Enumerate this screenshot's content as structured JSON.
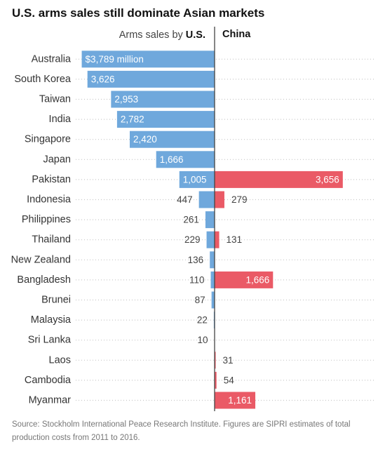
{
  "title": "U.S. arms sales still dominate Asian markets",
  "source": "Source: Stockholm International Peace Research Institute. Figures are SIPRI estimates of total production costs from 2011 to 2016.",
  "colors": {
    "us": "#6fa8dc",
    "china": "#ea5a66",
    "axis": "#444444",
    "dots": "#c8c8c8"
  },
  "chart_data": {
    "type": "bar",
    "orientation": "horizontal-diverging",
    "title": "U.S. arms sales still dominate Asian markets",
    "header_left_prefix": "Arms sales by ",
    "header_left_bold": "U.S.",
    "header_right": "China",
    "first_label_suffix": " million",
    "categories": [
      "Australia",
      "South Korea",
      "Taiwan",
      "India",
      "Singapore",
      "Japan",
      "Pakistan",
      "Indonesia",
      "Philippines",
      "Thailand",
      "New Zealand",
      "Bangladesh",
      "Brunei",
      "Malaysia",
      "Sri Lanka",
      "Laos",
      "Cambodia",
      "Myanmar"
    ],
    "series": [
      {
        "name": "U.S.",
        "values": [
          3789,
          3626,
          2953,
          2782,
          2420,
          1666,
          1005,
          447,
          261,
          229,
          136,
          110,
          87,
          22,
          10,
          null,
          null,
          null
        ],
        "labels": [
          "$3,789 million",
          "3,626",
          "2,953",
          "2,782",
          "2,420",
          "1,666",
          "1,005",
          "447",
          "261",
          "229",
          "136",
          "110",
          "87",
          "22",
          "10",
          "",
          "",
          ""
        ]
      },
      {
        "name": "China",
        "values": [
          null,
          null,
          null,
          null,
          null,
          null,
          3656,
          279,
          null,
          131,
          null,
          1666,
          null,
          null,
          null,
          31,
          54,
          1161
        ],
        "labels": [
          "",
          "",
          "",
          "",
          "",
          "",
          "3,656",
          "279",
          "",
          "131",
          "",
          "1,666",
          "",
          "",
          "",
          "31",
          "54",
          "1,161"
        ]
      }
    ]
  }
}
